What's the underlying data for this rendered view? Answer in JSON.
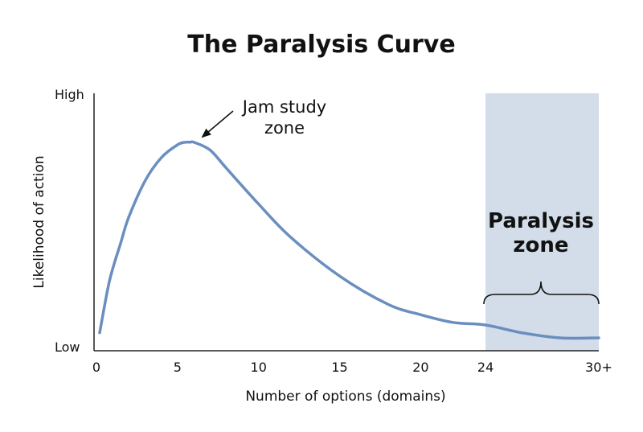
{
  "chart_data": {
    "type": "line",
    "title": "The Paralysis Curve",
    "xlabel": "Number of options (domains)",
    "ylabel": "Likelihood of action",
    "x_ticks": [
      {
        "value": 0,
        "label": "0"
      },
      {
        "value": 5,
        "label": "5"
      },
      {
        "value": 10,
        "label": "10"
      },
      {
        "value": 15,
        "label": "15"
      },
      {
        "value": 20,
        "label": "20"
      },
      {
        "value": 24,
        "label": "24"
      },
      {
        "value": 30,
        "label": "30+"
      }
    ],
    "y_ticks": [
      {
        "value": 0,
        "label": "Low"
      },
      {
        "value": 1,
        "label": "High"
      }
    ],
    "xlim": [
      0,
      30
    ],
    "ylim": [
      0,
      1
    ],
    "series": [
      {
        "color": "#6a8fbf",
        "x": [
          0.2,
          0.8,
          1.5,
          2,
          3,
          4,
          5,
          5.5,
          5.8,
          6,
          7,
          8,
          10,
          12,
          15,
          18,
          20,
          22,
          24,
          26,
          28,
          30
        ],
        "y": [
          0.07,
          0.27,
          0.42,
          0.52,
          0.66,
          0.75,
          0.8,
          0.81,
          0.81,
          0.81,
          0.78,
          0.71,
          0.57,
          0.44,
          0.29,
          0.18,
          0.14,
          0.11,
          0.1,
          0.07,
          0.05,
          0.05
        ]
      }
    ],
    "shaded_region": {
      "x_start": 24,
      "x_end": 30,
      "color": "#d3dde9",
      "label_lines": [
        "Paralysis",
        "zone"
      ]
    },
    "annotations": [
      {
        "lines": [
          "Jam study",
          "zone"
        ],
        "points_to": {
          "x": 6,
          "y": 0.81
        }
      }
    ],
    "grid": false
  }
}
